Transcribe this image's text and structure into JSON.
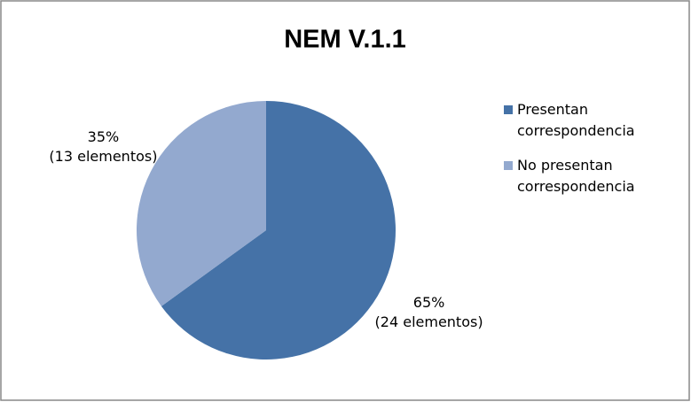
{
  "chart_data": {
    "type": "pie",
    "title": "NEM V.1.1",
    "categories": [
      "Presentan correspondencia",
      "No presentan correspondencia"
    ],
    "values": [
      65,
      35
    ],
    "value_labels": [
      "65%",
      "35%"
    ],
    "count_labels": [
      "(24 elementos)",
      "(13 elementos)"
    ],
    "colors": [
      "#4572a7",
      "#93a9cf"
    ],
    "legend": "right"
  }
}
